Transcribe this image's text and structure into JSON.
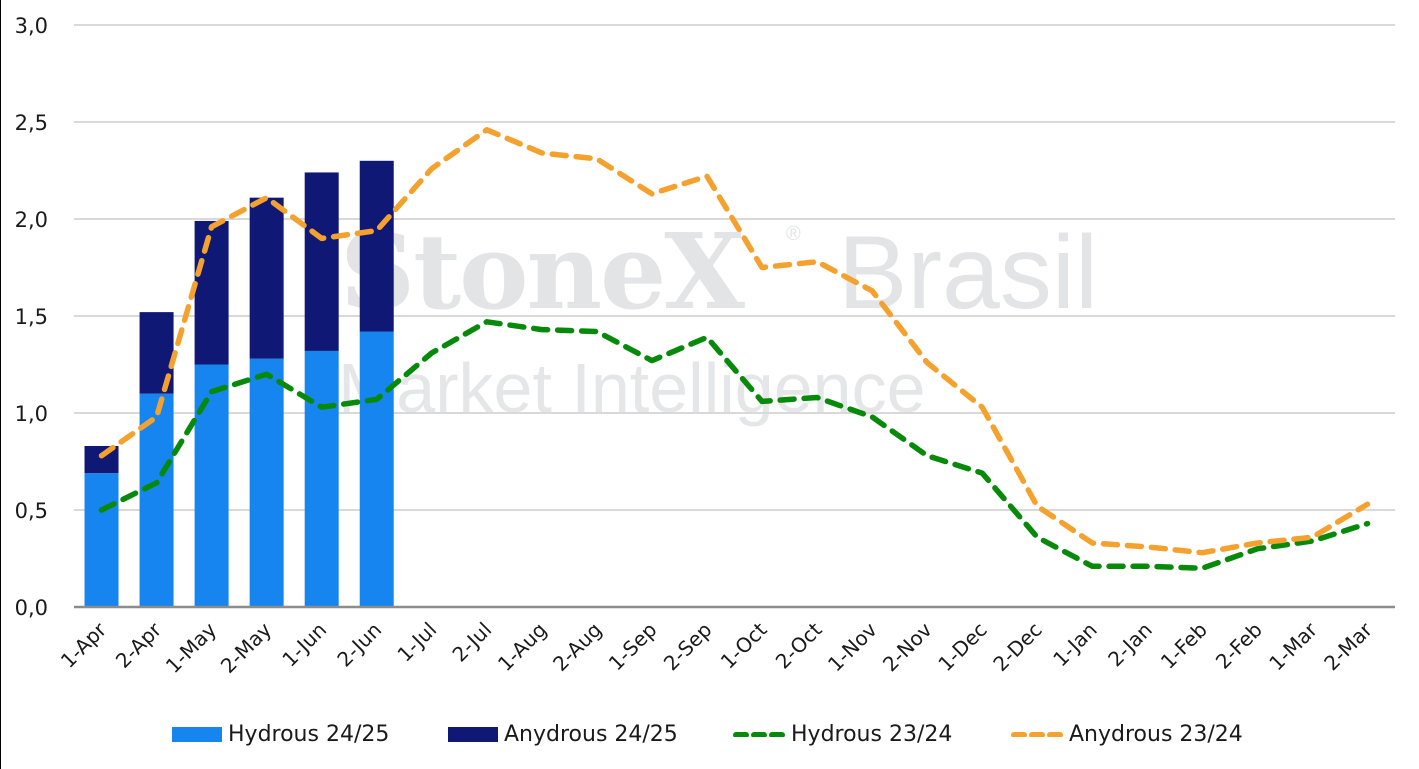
{
  "chart_data": {
    "type": "bar",
    "subtype": "stacked bar + dashed line combo",
    "title": "",
    "xlabel": "",
    "ylabel": "",
    "ylim": [
      0,
      3.0
    ],
    "yticks": [
      "0,0",
      "0,5",
      "1,0",
      "1,5",
      "2,0",
      "2,5",
      "3,0"
    ],
    "ytick_values": [
      0,
      0.5,
      1.0,
      1.5,
      2.0,
      2.5,
      3.0
    ],
    "grid": true,
    "legend_position": "bottom",
    "categories": [
      "1-Apr",
      "2-Apr",
      "1-May",
      "2-May",
      "1-Jun",
      "2-Jun",
      "1-Jul",
      "2-Jul",
      "1-Aug",
      "2-Aug",
      "1-Sep",
      "2-Sep",
      "1-Oct",
      "2-Oct",
      "1-Nov",
      "2-Nov",
      "1-Dec",
      "2-Dec",
      "1-Jan",
      "2-Jan",
      "1-Feb",
      "2-Feb",
      "1-Mar",
      "2-Mar"
    ],
    "series": [
      {
        "name": "Hydrous 24/25",
        "kind": "stacked-bar",
        "color": "#1685F0",
        "values": [
          0.69,
          1.1,
          1.25,
          1.28,
          1.32,
          1.42
        ]
      },
      {
        "name": "Anydrous 24/25",
        "kind": "stacked-bar",
        "color": "#0F1874",
        "values": [
          0.14,
          0.42,
          0.74,
          0.83,
          0.92,
          0.88
        ],
        "stack_totals": [
          0.83,
          1.52,
          1.99,
          2.11,
          2.24,
          2.3
        ]
      },
      {
        "name": "Hydrous 23/24",
        "kind": "dashed-line",
        "color": "#078A0A",
        "values": [
          0.5,
          0.64,
          1.11,
          1.2,
          1.03,
          1.07,
          1.31,
          1.47,
          1.43,
          1.42,
          1.27,
          1.39,
          1.06,
          1.08,
          0.98,
          0.78,
          0.69,
          0.36,
          0.21,
          0.21,
          0.2,
          0.3,
          0.34,
          0.43
        ]
      },
      {
        "name": "Anydrous 23/24",
        "kind": "dashed-line",
        "color": "#F4A12E",
        "values": [
          0.78,
          0.98,
          1.96,
          2.11,
          1.9,
          1.94,
          2.26,
          2.46,
          2.34,
          2.31,
          2.13,
          2.22,
          1.75,
          1.78,
          1.63,
          1.26,
          1.03,
          0.52,
          0.33,
          0.31,
          0.28,
          0.33,
          0.36,
          0.53
        ]
      }
    ]
  },
  "watermark": {
    "brand": "StoneX",
    "registered": "®",
    "region": "Brasil",
    "tagline": "Market Intelligence"
  },
  "legend": [
    {
      "label": "Hydrous 24/25",
      "type": "bar",
      "color": "#1685F0"
    },
    {
      "label": "Anydrous 24/25",
      "type": "bar",
      "color": "#0F1874"
    },
    {
      "label": "Hydrous 23/24",
      "type": "dashed-line",
      "color": "#078A0A"
    },
    {
      "label": "Anydrous 23/24",
      "type": "dashed-line",
      "color": "#F4A12E"
    }
  ],
  "style": {
    "grid_color": "#D9D9D9",
    "axis_color": "#8C8C8C"
  }
}
